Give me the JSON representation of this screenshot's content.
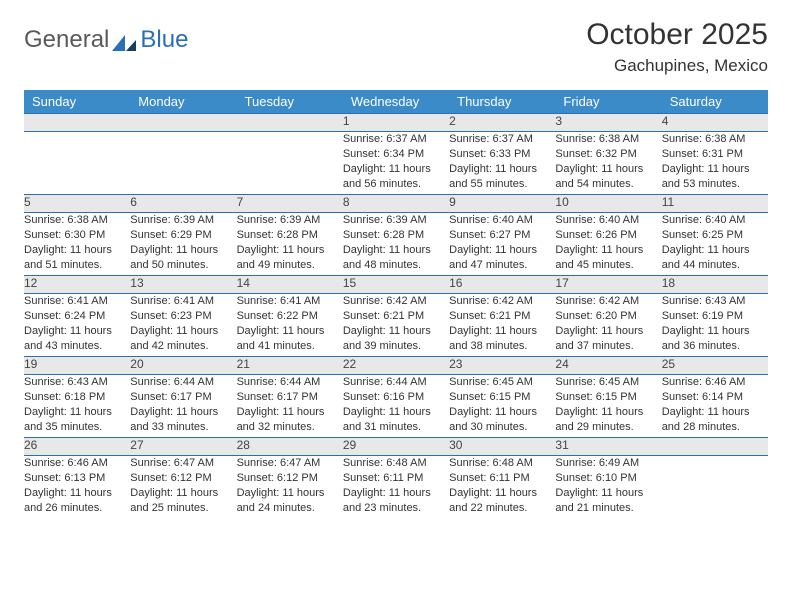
{
  "brand": {
    "part1": "General",
    "part2": "Blue"
  },
  "title": "October 2025",
  "location": "Gachupines, Mexico",
  "colors": {
    "header_bg": "#3b8bc9",
    "header_text": "#ffffff",
    "daynum_bg": "#e8e8e8",
    "row_border": "#2a6fb5",
    "text": "#333333",
    "brand_blue": "#2a6fb5",
    "brand_gray": "#5a5a5a",
    "page_bg": "#ffffff"
  },
  "day_names": [
    "Sunday",
    "Monday",
    "Tuesday",
    "Wednesday",
    "Thursday",
    "Friday",
    "Saturday"
  ],
  "weeks": [
    [
      null,
      null,
      null,
      {
        "n": "1",
        "sunrise": "Sunrise: 6:37 AM",
        "sunset": "Sunset: 6:34 PM",
        "daylight": "Daylight: 11 hours and 56 minutes."
      },
      {
        "n": "2",
        "sunrise": "Sunrise: 6:37 AM",
        "sunset": "Sunset: 6:33 PM",
        "daylight": "Daylight: 11 hours and 55 minutes."
      },
      {
        "n": "3",
        "sunrise": "Sunrise: 6:38 AM",
        "sunset": "Sunset: 6:32 PM",
        "daylight": "Daylight: 11 hours and 54 minutes."
      },
      {
        "n": "4",
        "sunrise": "Sunrise: 6:38 AM",
        "sunset": "Sunset: 6:31 PM",
        "daylight": "Daylight: 11 hours and 53 minutes."
      }
    ],
    [
      {
        "n": "5",
        "sunrise": "Sunrise: 6:38 AM",
        "sunset": "Sunset: 6:30 PM",
        "daylight": "Daylight: 11 hours and 51 minutes."
      },
      {
        "n": "6",
        "sunrise": "Sunrise: 6:39 AM",
        "sunset": "Sunset: 6:29 PM",
        "daylight": "Daylight: 11 hours and 50 minutes."
      },
      {
        "n": "7",
        "sunrise": "Sunrise: 6:39 AM",
        "sunset": "Sunset: 6:28 PM",
        "daylight": "Daylight: 11 hours and 49 minutes."
      },
      {
        "n": "8",
        "sunrise": "Sunrise: 6:39 AM",
        "sunset": "Sunset: 6:28 PM",
        "daylight": "Daylight: 11 hours and 48 minutes."
      },
      {
        "n": "9",
        "sunrise": "Sunrise: 6:40 AM",
        "sunset": "Sunset: 6:27 PM",
        "daylight": "Daylight: 11 hours and 47 minutes."
      },
      {
        "n": "10",
        "sunrise": "Sunrise: 6:40 AM",
        "sunset": "Sunset: 6:26 PM",
        "daylight": "Daylight: 11 hours and 45 minutes."
      },
      {
        "n": "11",
        "sunrise": "Sunrise: 6:40 AM",
        "sunset": "Sunset: 6:25 PM",
        "daylight": "Daylight: 11 hours and 44 minutes."
      }
    ],
    [
      {
        "n": "12",
        "sunrise": "Sunrise: 6:41 AM",
        "sunset": "Sunset: 6:24 PM",
        "daylight": "Daylight: 11 hours and 43 minutes."
      },
      {
        "n": "13",
        "sunrise": "Sunrise: 6:41 AM",
        "sunset": "Sunset: 6:23 PM",
        "daylight": "Daylight: 11 hours and 42 minutes."
      },
      {
        "n": "14",
        "sunrise": "Sunrise: 6:41 AM",
        "sunset": "Sunset: 6:22 PM",
        "daylight": "Daylight: 11 hours and 41 minutes."
      },
      {
        "n": "15",
        "sunrise": "Sunrise: 6:42 AM",
        "sunset": "Sunset: 6:21 PM",
        "daylight": "Daylight: 11 hours and 39 minutes."
      },
      {
        "n": "16",
        "sunrise": "Sunrise: 6:42 AM",
        "sunset": "Sunset: 6:21 PM",
        "daylight": "Daylight: 11 hours and 38 minutes."
      },
      {
        "n": "17",
        "sunrise": "Sunrise: 6:42 AM",
        "sunset": "Sunset: 6:20 PM",
        "daylight": "Daylight: 11 hours and 37 minutes."
      },
      {
        "n": "18",
        "sunrise": "Sunrise: 6:43 AM",
        "sunset": "Sunset: 6:19 PM",
        "daylight": "Daylight: 11 hours and 36 minutes."
      }
    ],
    [
      {
        "n": "19",
        "sunrise": "Sunrise: 6:43 AM",
        "sunset": "Sunset: 6:18 PM",
        "daylight": "Daylight: 11 hours and 35 minutes."
      },
      {
        "n": "20",
        "sunrise": "Sunrise: 6:44 AM",
        "sunset": "Sunset: 6:17 PM",
        "daylight": "Daylight: 11 hours and 33 minutes."
      },
      {
        "n": "21",
        "sunrise": "Sunrise: 6:44 AM",
        "sunset": "Sunset: 6:17 PM",
        "daylight": "Daylight: 11 hours and 32 minutes."
      },
      {
        "n": "22",
        "sunrise": "Sunrise: 6:44 AM",
        "sunset": "Sunset: 6:16 PM",
        "daylight": "Daylight: 11 hours and 31 minutes."
      },
      {
        "n": "23",
        "sunrise": "Sunrise: 6:45 AM",
        "sunset": "Sunset: 6:15 PM",
        "daylight": "Daylight: 11 hours and 30 minutes."
      },
      {
        "n": "24",
        "sunrise": "Sunrise: 6:45 AM",
        "sunset": "Sunset: 6:15 PM",
        "daylight": "Daylight: 11 hours and 29 minutes."
      },
      {
        "n": "25",
        "sunrise": "Sunrise: 6:46 AM",
        "sunset": "Sunset: 6:14 PM",
        "daylight": "Daylight: 11 hours and 28 minutes."
      }
    ],
    [
      {
        "n": "26",
        "sunrise": "Sunrise: 6:46 AM",
        "sunset": "Sunset: 6:13 PM",
        "daylight": "Daylight: 11 hours and 26 minutes."
      },
      {
        "n": "27",
        "sunrise": "Sunrise: 6:47 AM",
        "sunset": "Sunset: 6:12 PM",
        "daylight": "Daylight: 11 hours and 25 minutes."
      },
      {
        "n": "28",
        "sunrise": "Sunrise: 6:47 AM",
        "sunset": "Sunset: 6:12 PM",
        "daylight": "Daylight: 11 hours and 24 minutes."
      },
      {
        "n": "29",
        "sunrise": "Sunrise: 6:48 AM",
        "sunset": "Sunset: 6:11 PM",
        "daylight": "Daylight: 11 hours and 23 minutes."
      },
      {
        "n": "30",
        "sunrise": "Sunrise: 6:48 AM",
        "sunset": "Sunset: 6:11 PM",
        "daylight": "Daylight: 11 hours and 22 minutes."
      },
      {
        "n": "31",
        "sunrise": "Sunrise: 6:49 AM",
        "sunset": "Sunset: 6:10 PM",
        "daylight": "Daylight: 11 hours and 21 minutes."
      },
      null
    ]
  ]
}
